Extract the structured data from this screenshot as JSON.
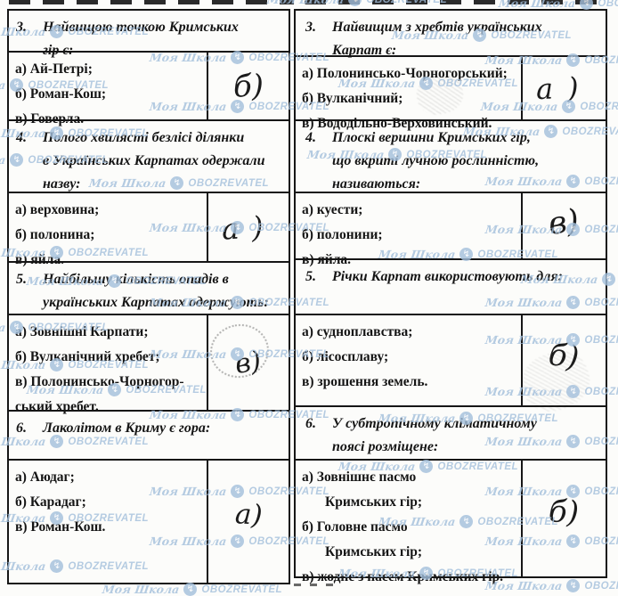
{
  "watermark": {
    "school_label": "Моя Школа",
    "brand_label": "OBOZREVATEL",
    "color": "#a3bfdc"
  },
  "columns": [
    {
      "questions": [
        {
          "number": "3.",
          "lines": [
            "Найвищою точкою Кримських",
            "гір є:"
          ],
          "options": [
            {
              "text": "а) Ай-Петрі;"
            },
            {
              "text": "б) Роман-Кош;"
            },
            {
              "text": "в) Говерла."
            }
          ],
          "answer": "б)"
        },
        {
          "number": "4.",
          "lines": [
            "Полого хвилясті безлісі ділянки",
            "в Українських Карпатах одержали",
            "назву:"
          ],
          "options": [
            {
              "text": "а) верховина;"
            },
            {
              "text": "б) полонина;"
            },
            {
              "text": "в) яйла."
            }
          ],
          "answer": "а)"
        },
        {
          "number": "5.",
          "lines": [
            "Найбільшу кількість опадів в",
            "українських Карпатах одержують:"
          ],
          "options": [
            {
              "text": "а) Зовнішні Карпати;"
            },
            {
              "text": "б) Вулканічний хребет;"
            },
            {
              "text": "в) Полонинсько-Чорногор-"
            },
            {
              "text": "ський хребет."
            }
          ],
          "answer": "в)"
        },
        {
          "number": "6.",
          "lines": [
            "Лаколітом в Криму є гора:"
          ],
          "options": [
            {
              "text": "а) Аюдаг;"
            },
            {
              "text": "б) Карадаг;"
            },
            {
              "text": "в) Роман-Кош."
            }
          ],
          "answer": "а)"
        }
      ]
    },
    {
      "questions": [
        {
          "number": "3.",
          "lines": [
            "Найвищим з хребтів українських",
            "Карпат є:"
          ],
          "options": [
            {
              "text": "а) Полонинсько-Чорногорський;"
            },
            {
              "text": "б) Вулканічний;"
            },
            {
              "text": "в) Вододільно-Верховинський."
            }
          ],
          "answer": "а)"
        },
        {
          "number": "4.",
          "lines": [
            "Плоскі вершини Кримських гір,",
            "що вкриті лучною рослинністю,",
            "називаються:"
          ],
          "options": [
            {
              "text": "а) куести;"
            },
            {
              "text": "б) полонини;"
            },
            {
              "text": "в) яйла."
            }
          ],
          "answer": "в)"
        },
        {
          "number": "5.",
          "lines": [
            "Річки Карпат використовують для:"
          ],
          "options": [
            {
              "text": "а) судноплавства;"
            },
            {
              "text": "б) лісосплаву;"
            },
            {
              "text": "в) зрошення земель."
            }
          ],
          "answer": "б)"
        },
        {
          "number": "6.",
          "lines": [
            "У субтропічному кліматичному",
            "поясі розміщене:"
          ],
          "options": [
            {
              "text": "а) Зовнішнє пасмо"
            },
            {
              "text": "Кримських гір;",
              "indent": true
            },
            {
              "text": "б) Головне пасмо"
            },
            {
              "text": "Кримських гір;",
              "indent": true
            },
            {
              "text": "в) жодне з пасем Кримських гір."
            }
          ],
          "answer": "б)"
        }
      ]
    }
  ]
}
